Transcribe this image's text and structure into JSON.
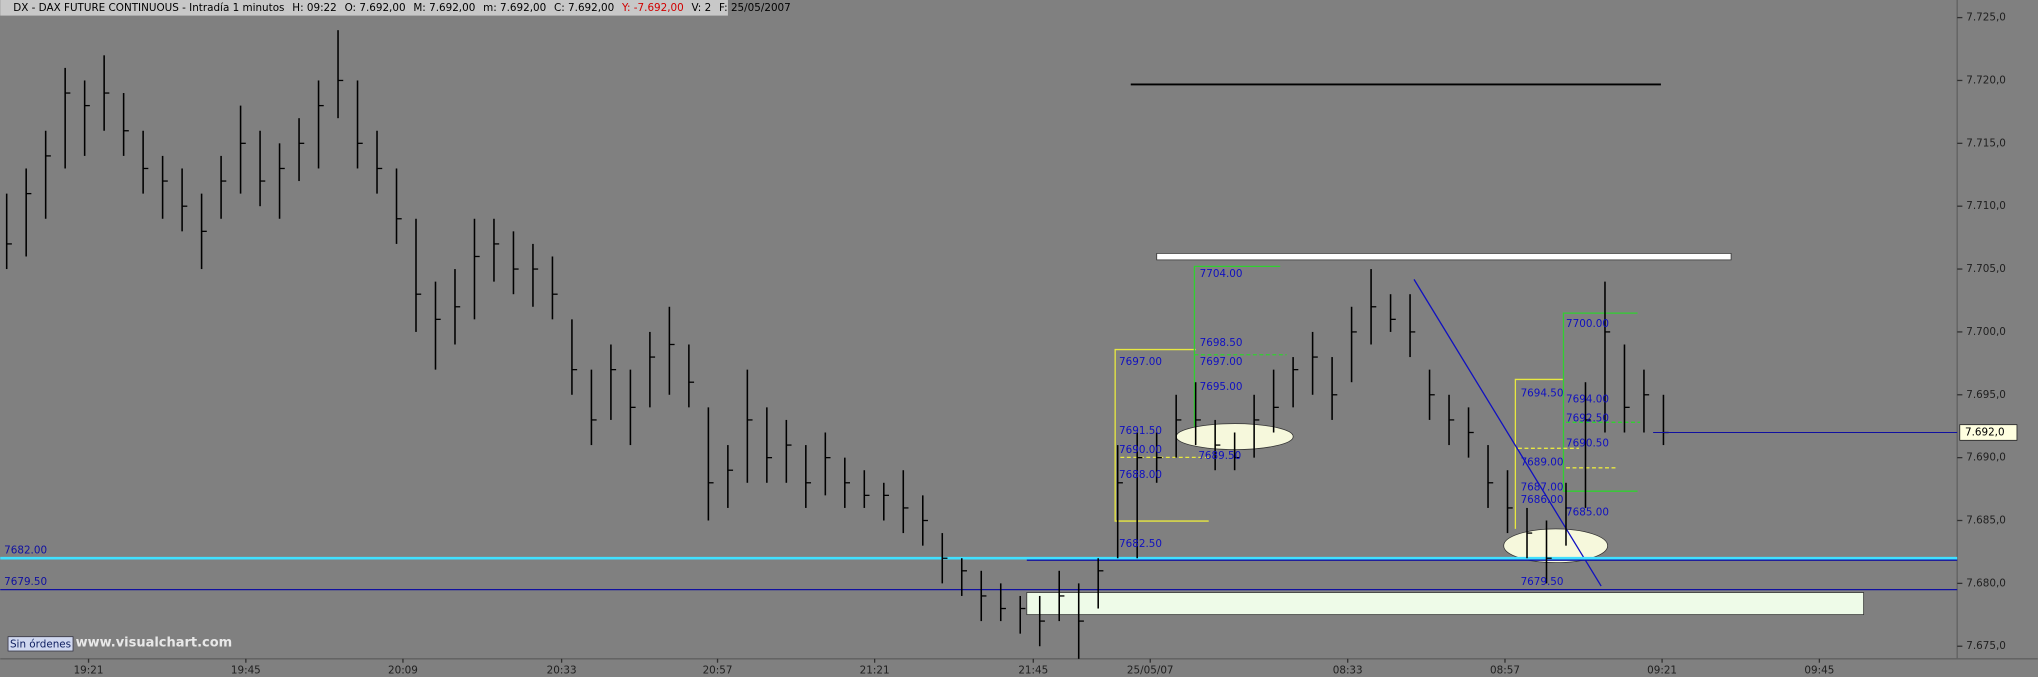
{
  "chart_data": {
    "type": "ohlc",
    "header": [
      {
        "text": "DX - DAX FUTURE CONTINUOUS - Intradía 1 minutos",
        "color": "#000000"
      },
      {
        "text": "H: 09:22",
        "color": "#000000"
      },
      {
        "text": "O: 7.692,00",
        "color": "#000000"
      },
      {
        "text": "M: 7.692,00",
        "color": "#000000"
      },
      {
        "text": "m: 7.692,00",
        "color": "#000000"
      },
      {
        "text": "C: 7.692,00",
        "color": "#000000"
      },
      {
        "text": "Y: -7.692,00",
        "color": "#d00000"
      },
      {
        "text": "V: 2",
        "color": "#000000"
      },
      {
        "text": "F: 25/05/2007",
        "color": "#000000"
      }
    ],
    "color": "#000000",
    "high": [
      7711,
      7713,
      7716,
      7721,
      7720,
      7722,
      7719,
      7716,
      7714,
      7713,
      7711,
      7714,
      7718,
      7716,
      7715,
      7717,
      7720,
      7724,
      7720,
      7716,
      7713,
      7709,
      7704,
      7705,
      7709,
      7709,
      7708,
      7707,
      7706,
      7701,
      7697,
      7699,
      7697,
      7700,
      7702,
      7699,
      7694,
      7691,
      7697,
      7694,
      7693,
      7691,
      7692,
      7690,
      7689,
      7688,
      7689,
      7687,
      7684,
      7682,
      7681,
      7680,
      7679,
      7679,
      7681,
      7680,
      7682,
      7691,
      7692,
      7692,
      7695,
      7696,
      7693,
      7692,
      7695,
      7697,
      7698,
      7700,
      7698,
      7702,
      7705,
      7703,
      7703,
      7697,
      7695,
      7694,
      7691,
      7689,
      7686,
      7685,
      7688,
      7696,
      7704,
      7699,
      7697,
      7695
    ],
    "low": [
      7705,
      7706,
      7709,
      7713,
      7714,
      7716,
      7714,
      7711,
      7709,
      7708,
      7705,
      7709,
      7711,
      7710,
      7709,
      7712,
      7713,
      7717,
      7713,
      7711,
      7707,
      7700,
      7697,
      7699,
      7701,
      7704,
      7703,
      7702,
      7701,
      7695,
      7691,
      7693,
      7691,
      7694,
      7695,
      7694,
      7685,
      7686,
      7688,
      7688,
      7688,
      7686,
      7687,
      7686,
      7686,
      7685,
      7684,
      7683,
      7680,
      7679,
      7677,
      7677,
      7676,
      7675,
      7677,
      7674,
      7678,
      7682,
      7682,
      7688,
      7690,
      7691,
      7689,
      7689,
      7690,
      7692,
      7694,
      7695,
      7693,
      7696,
      7699,
      7700,
      7698,
      7693,
      7691,
      7690,
      7686,
      7684,
      7682,
      7680,
      7683,
      7686,
      7692,
      7692,
      7692,
      7691
    ],
    "close": [
      7707,
      7711,
      7714,
      7719,
      7718,
      7719,
      7716,
      7713,
      7712,
      7710,
      7708,
      7712,
      7715,
      7712,
      7713,
      7715,
      7718,
      7720,
      7715,
      7713,
      7709,
      7703,
      7701,
      7702,
      7706,
      7707,
      7705,
      7705,
      7703,
      7697,
      7693,
      7697,
      7694,
      7698,
      7699,
      7696,
      7688,
      7689,
      7693,
      7690,
      7691,
      7688,
      7690,
      7688,
      7687,
      7687,
      7686,
      7685,
      7682,
      7681,
      7679,
      7678,
      7678,
      7677,
      7679,
      7677,
      7681,
      7688,
      7690,
      7690,
      7693,
      7693,
      7691,
      7690,
      7693,
      7694,
      7697,
      7698,
      7695,
      7700,
      7702,
      7701,
      7700,
      7695,
      7693,
      7692,
      7688,
      7686,
      7684,
      7682,
      7686,
      7693,
      7700,
      7694,
      7695,
      7692
    ],
    "xlim": [
      -0.33,
      100.07
    ],
    "xticks": [
      {
        "value": 4.2,
        "label": "19:21"
      },
      {
        "value": 12.27,
        "label": "19:45"
      },
      {
        "value": 20.33,
        "label": "20:09"
      },
      {
        "value": 28.47,
        "label": "20:33"
      },
      {
        "value": 36.47,
        "label": "20:57"
      },
      {
        "value": 44.53,
        "label": "21:21"
      },
      {
        "value": 52.67,
        "label": "21:45"
      },
      {
        "value": 58.67,
        "label": "25/05/07"
      },
      {
        "value": 68.8,
        "label": "08:33"
      },
      {
        "value": 76.87,
        "label": "08:57"
      },
      {
        "value": 84.93,
        "label": "09:21"
      },
      {
        "value": 93,
        "label": "09:45"
      }
    ],
    "ylim": [
      7674,
      7726.4
    ],
    "yticks": [
      {
        "value": 7675,
        "label": "7.675,0"
      },
      {
        "value": 7680,
        "label": "7.680,0"
      },
      {
        "value": 7685,
        "label": "7.685,0"
      },
      {
        "value": 7690,
        "label": "7.690,0"
      },
      {
        "value": 7695,
        "label": "7.695,0"
      },
      {
        "value": 7700,
        "label": "7.700,0"
      },
      {
        "value": 7705,
        "label": "7.705,0"
      },
      {
        "value": 7710,
        "label": "7.710,0"
      },
      {
        "value": 7715,
        "label": "7.715,0"
      },
      {
        "value": 7720,
        "label": "7.720,0"
      },
      {
        "value": 7725,
        "label": "7.725,0"
      }
    ],
    "last_price": {
      "value": 7692,
      "label": "7.692,0"
    },
    "levels": [
      {
        "value": 7682,
        "label": "7682.00",
        "color": "#40e0ff"
      },
      {
        "value": 7679.5,
        "label": "7679.50",
        "color": "#1010a0"
      }
    ],
    "annotations": [
      {
        "value": 7704,
        "label": "7704.00"
      },
      {
        "value": 7698.5,
        "label": "7698.50"
      },
      {
        "value": 7697,
        "label": "7697.00"
      },
      {
        "value": 7695,
        "label": "7695.00"
      },
      {
        "value": 7697,
        "label": "7697.00"
      },
      {
        "value": 7691.5,
        "label": "7691.50"
      },
      {
        "value": 7690,
        "label": "7690.00"
      },
      {
        "value": 7688,
        "label": "7688.00"
      },
      {
        "value": 7682.5,
        "label": "7682.50"
      },
      {
        "value": 7689.5,
        "label": "7689.50"
      },
      {
        "value": 7694.5,
        "label": "7694.50"
      },
      {
        "value": 7694,
        "label": "7694.00"
      },
      {
        "value": 7700,
        "label": "7700.00"
      },
      {
        "value": 7692.5,
        "label": "7692.50"
      },
      {
        "value": 7690.5,
        "label": "7690.50"
      },
      {
        "value": 7689,
        "label": "7689.00"
      },
      {
        "value": 7687,
        "label": "7687.00"
      },
      {
        "value": 7686,
        "label": "7686.00"
      },
      {
        "value": 7685,
        "label": "7685.00"
      },
      {
        "value": 7679.5,
        "label": "7679.50"
      }
    ],
    "button": "Sin órdenes",
    "watermark": "www.visualchart.com"
  }
}
